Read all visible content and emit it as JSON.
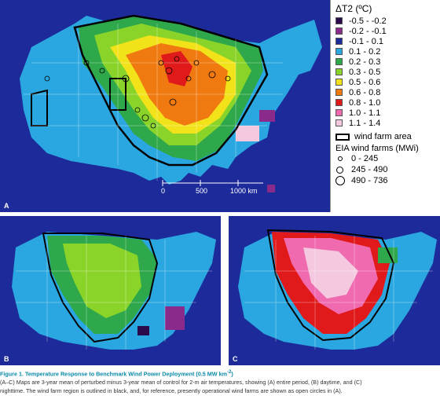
{
  "legend": {
    "title": "ΔT2 (ºC)",
    "items": [
      {
        "label": "-0.5 - -0.2",
        "color": "#2a0a4a"
      },
      {
        "label": "-0.2 - -0.1",
        "color": "#8a2a8a"
      },
      {
        "label": "-0.1 - 0.1",
        "color": "#1d2a9a"
      },
      {
        "label": "0.1 - 0.2",
        "color": "#2aa6e0"
      },
      {
        "label": "0.2 - 0.3",
        "color": "#2ea84a"
      },
      {
        "label": "0.3 - 0.5",
        "color": "#8ad42a"
      },
      {
        "label": "0.5 - 0.6",
        "color": "#f2e21a"
      },
      {
        "label": "0.6 - 0.8",
        "color": "#f07a10"
      },
      {
        "label": "0.8 - 1.0",
        "color": "#e01a1a"
      },
      {
        "label": "1.0 - 1.1",
        "color": "#f06ab0"
      },
      {
        "label": "1.1 - 1.4",
        "color": "#f4c8de"
      }
    ],
    "wind_farm_label": "wind farm area",
    "eia_title": "EIA wind farms (MWi)",
    "eia_items": [
      "0 - 245",
      "245 - 490",
      "490 - 736"
    ]
  },
  "scale_bar": {
    "labels": [
      "0",
      "500",
      "1000 km"
    ]
  },
  "panels": {
    "a": "A",
    "b": "B",
    "c": "C"
  },
  "caption": {
    "title": "Figure 1.  Temperature Response to Benchmark Wind Power Deployment (0.5 MW km",
    "title_sup": "-2",
    "title_end": ")",
    "line1": "(A–C) Maps are 3-year mean of perturbed minus 3-year mean of control for 2-m air temperatures, showing (A) entire period, (B) daytime, and (C)",
    "line2": "nighttime. The wind farm region is outlined in black, and, for reference, presently operational wind farms are shown as open circles in (A)."
  }
}
